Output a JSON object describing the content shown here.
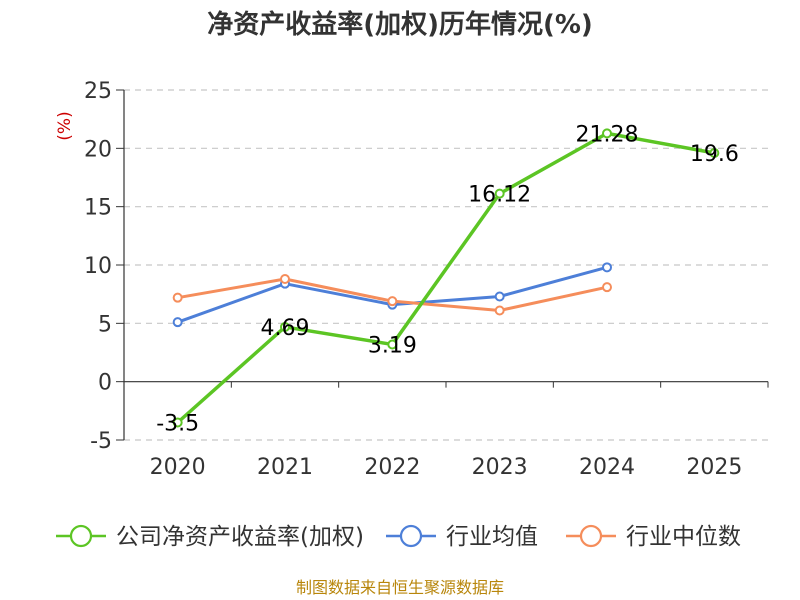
{
  "chart_data": {
    "type": "line",
    "title": "净资产收益率(加权)历年情况(%)",
    "ylabel": "(%)",
    "xlabel": "",
    "categories": [
      "2020",
      "2021",
      "2022",
      "2023",
      "2024",
      "2025"
    ],
    "ylim": [
      -5,
      25
    ],
    "yticks": [
      -5,
      0,
      5,
      10,
      15,
      20,
      25
    ],
    "grid": true,
    "legend_position": "bottom",
    "series": [
      {
        "name": "公司净资产收益率(加权)",
        "color": "#5cc524",
        "values": [
          -3.5,
          4.69,
          3.19,
          16.12,
          21.28,
          19.6
        ],
        "labels": [
          "-3.5",
          "4.69",
          "3.19",
          "16.12",
          "21.28",
          "19.6"
        ]
      },
      {
        "name": "行业均值",
        "color": "#4d7fd8",
        "values": [
          5.1,
          8.4,
          6.6,
          7.3,
          9.8,
          null
        ]
      },
      {
        "name": "行业中位数",
        "color": "#f58d5b",
        "values": [
          7.2,
          8.8,
          6.9,
          6.1,
          8.1,
          null
        ]
      }
    ],
    "source": "制图数据来自恒生聚源数据库"
  }
}
